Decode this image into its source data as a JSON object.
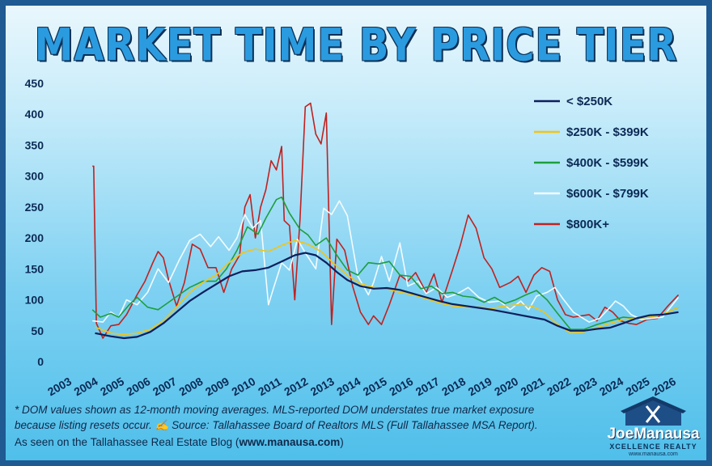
{
  "chart_data": {
    "type": "line",
    "title": "MARKET TIME BY PRICE TIER",
    "xlabel": "",
    "ylabel": "",
    "ylim": [
      0,
      450
    ],
    "xlim": [
      2003,
      2026.8
    ],
    "yticks": [
      0,
      50,
      100,
      150,
      200,
      250,
      300,
      350,
      400,
      450
    ],
    "xticks": [
      2003,
      2004,
      2005,
      2006,
      2007,
      2008,
      2009,
      2010,
      2011,
      2012,
      2013,
      2014,
      2015,
      2016,
      2017,
      2018,
      2019,
      2020,
      2021,
      2022,
      2023,
      2024,
      2025,
      2026
    ],
    "grid": false,
    "legend_position": "top-right",
    "series": [
      {
        "name": "< $250K",
        "color": "#0d1f5c",
        "points": [
          [
            2004.4,
            46
          ],
          [
            2005.0,
            41
          ],
          [
            2005.5,
            38
          ],
          [
            2006.0,
            40
          ],
          [
            2006.5,
            48
          ],
          [
            2007.0,
            62
          ],
          [
            2007.5,
            80
          ],
          [
            2008.0,
            98
          ],
          [
            2008.5,
            112
          ],
          [
            2009.0,
            125
          ],
          [
            2009.5,
            138
          ],
          [
            2010.0,
            146
          ],
          [
            2010.5,
            148
          ],
          [
            2011.0,
            152
          ],
          [
            2011.5,
            162
          ],
          [
            2012.0,
            172
          ],
          [
            2012.4,
            176
          ],
          [
            2012.8,
            172
          ],
          [
            2013.2,
            160
          ],
          [
            2013.6,
            145
          ],
          [
            2014.0,
            132
          ],
          [
            2014.5,
            122
          ],
          [
            2015.0,
            118
          ],
          [
            2015.5,
            119
          ],
          [
            2016.0,
            116
          ],
          [
            2016.5,
            110
          ],
          [
            2017.0,
            104
          ],
          [
            2017.5,
            98
          ],
          [
            2018.0,
            93
          ],
          [
            2018.5,
            90
          ],
          [
            2019.0,
            87
          ],
          [
            2019.5,
            84
          ],
          [
            2020.0,
            80
          ],
          [
            2020.5,
            76
          ],
          [
            2021.0,
            72
          ],
          [
            2021.5,
            68
          ],
          [
            2022.0,
            58
          ],
          [
            2022.5,
            50
          ],
          [
            2023.0,
            50
          ],
          [
            2023.5,
            53
          ],
          [
            2024.0,
            55
          ],
          [
            2024.5,
            62
          ],
          [
            2025.0,
            70
          ],
          [
            2025.5,
            75
          ],
          [
            2026.0,
            76
          ],
          [
            2026.6,
            80
          ]
        ]
      },
      {
        "name": "$250K - $399K",
        "color": "#f2c414",
        "points": [
          [
            2004.4,
            56
          ],
          [
            2005.0,
            46
          ],
          [
            2005.5,
            44
          ],
          [
            2006.0,
            46
          ],
          [
            2006.5,
            52
          ],
          [
            2007.0,
            66
          ],
          [
            2007.5,
            88
          ],
          [
            2008.0,
            112
          ],
          [
            2008.5,
            128
          ],
          [
            2009.0,
            140
          ],
          [
            2009.5,
            160
          ],
          [
            2010.0,
            176
          ],
          [
            2010.5,
            182
          ],
          [
            2011.0,
            178
          ],
          [
            2011.5,
            188
          ],
          [
            2012.0,
            196
          ],
          [
            2012.5,
            190
          ],
          [
            2013.0,
            178
          ],
          [
            2013.5,
            158
          ],
          [
            2014.0,
            140
          ],
          [
            2014.5,
            126
          ],
          [
            2015.0,
            120
          ],
          [
            2015.5,
            118
          ],
          [
            2016.0,
            112
          ],
          [
            2016.5,
            108
          ],
          [
            2017.0,
            102
          ],
          [
            2017.5,
            95
          ],
          [
            2018.0,
            90
          ],
          [
            2018.5,
            88
          ],
          [
            2019.0,
            88
          ],
          [
            2019.5,
            86
          ],
          [
            2020.0,
            90
          ],
          [
            2020.5,
            92
          ],
          [
            2021.0,
            90
          ],
          [
            2021.5,
            80
          ],
          [
            2022.0,
            60
          ],
          [
            2022.5,
            46
          ],
          [
            2023.0,
            48
          ],
          [
            2023.5,
            55
          ],
          [
            2024.0,
            62
          ],
          [
            2024.5,
            68
          ],
          [
            2025.0,
            70
          ],
          [
            2025.5,
            72
          ],
          [
            2026.0,
            76
          ],
          [
            2026.6,
            88
          ]
        ]
      },
      {
        "name": "$400K - $599K",
        "color": "#1e9e3c",
        "points": [
          [
            2004.3,
            84
          ],
          [
            2004.6,
            72
          ],
          [
            2005.0,
            78
          ],
          [
            2005.3,
            72
          ],
          [
            2005.7,
            92
          ],
          [
            2006.0,
            104
          ],
          [
            2006.4,
            88
          ],
          [
            2006.8,
            84
          ],
          [
            2007.2,
            96
          ],
          [
            2007.6,
            108
          ],
          [
            2008.0,
            120
          ],
          [
            2008.5,
            130
          ],
          [
            2009.0,
            130
          ],
          [
            2009.4,
            150
          ],
          [
            2009.8,
            180
          ],
          [
            2010.2,
            218
          ],
          [
            2010.6,
            206
          ],
          [
            2010.9,
            232
          ],
          [
            2011.3,
            262
          ],
          [
            2011.5,
            266
          ],
          [
            2011.8,
            240
          ],
          [
            2012.2,
            214
          ],
          [
            2012.5,
            205
          ],
          [
            2012.8,
            188
          ],
          [
            2013.2,
            200
          ],
          [
            2013.6,
            172
          ],
          [
            2014.0,
            148
          ],
          [
            2014.4,
            140
          ],
          [
            2014.8,
            160
          ],
          [
            2015.2,
            158
          ],
          [
            2015.6,
            162
          ],
          [
            2016.0,
            140
          ],
          [
            2016.4,
            138
          ],
          [
            2016.8,
            118
          ],
          [
            2017.2,
            122
          ],
          [
            2017.6,
            110
          ],
          [
            2018.0,
            112
          ],
          [
            2018.4,
            106
          ],
          [
            2018.8,
            104
          ],
          [
            2019.2,
            96
          ],
          [
            2019.6,
            104
          ],
          [
            2020.0,
            94
          ],
          [
            2020.4,
            100
          ],
          [
            2020.8,
            108
          ],
          [
            2021.2,
            115
          ],
          [
            2021.6,
            100
          ],
          [
            2022.0,
            78
          ],
          [
            2022.5,
            52
          ],
          [
            2023.0,
            52
          ],
          [
            2023.5,
            60
          ],
          [
            2024.0,
            66
          ],
          [
            2024.5,
            72
          ],
          [
            2025.0,
            70
          ],
          [
            2025.5,
            72
          ],
          [
            2026.0,
            76
          ],
          [
            2026.6,
            88
          ]
        ]
      },
      {
        "name": "$600K - $799K",
        "color": "#f4fbff",
        "points": [
          [
            2004.3,
            66
          ],
          [
            2004.7,
            64
          ],
          [
            2005.0,
            80
          ],
          [
            2005.3,
            72
          ],
          [
            2005.6,
            100
          ],
          [
            2006.0,
            92
          ],
          [
            2006.4,
            112
          ],
          [
            2006.8,
            150
          ],
          [
            2007.2,
            128
          ],
          [
            2007.6,
            164
          ],
          [
            2008.0,
            196
          ],
          [
            2008.4,
            206
          ],
          [
            2008.8,
            186
          ],
          [
            2009.1,
            202
          ],
          [
            2009.5,
            180
          ],
          [
            2009.8,
            200
          ],
          [
            2010.1,
            238
          ],
          [
            2010.4,
            216
          ],
          [
            2010.7,
            228
          ],
          [
            2011.0,
            92
          ],
          [
            2011.2,
            120
          ],
          [
            2011.5,
            160
          ],
          [
            2011.8,
            148
          ],
          [
            2012.1,
            198
          ],
          [
            2012.4,
            176
          ],
          [
            2012.8,
            150
          ],
          [
            2013.1,
            248
          ],
          [
            2013.4,
            238
          ],
          [
            2013.7,
            260
          ],
          [
            2014.0,
            236
          ],
          [
            2014.4,
            138
          ],
          [
            2014.8,
            108
          ],
          [
            2015.0,
            128
          ],
          [
            2015.3,
            170
          ],
          [
            2015.6,
            130
          ],
          [
            2016.0,
            192
          ],
          [
            2016.3,
            122
          ],
          [
            2016.7,
            130
          ],
          [
            2017.0,
            110
          ],
          [
            2017.4,
            120
          ],
          [
            2017.8,
            104
          ],
          [
            2018.2,
            110
          ],
          [
            2018.6,
            120
          ],
          [
            2019.0,
            104
          ],
          [
            2019.4,
            96
          ],
          [
            2019.8,
            98
          ],
          [
            2020.2,
            84
          ],
          [
            2020.6,
            98
          ],
          [
            2020.9,
            84
          ],
          [
            2021.2,
            106
          ],
          [
            2021.6,
            112
          ],
          [
            2021.9,
            120
          ],
          [
            2022.2,
            102
          ],
          [
            2022.6,
            80
          ],
          [
            2022.9,
            72
          ],
          [
            2023.2,
            64
          ],
          [
            2023.6,
            70
          ],
          [
            2024.0,
            88
          ],
          [
            2024.2,
            98
          ],
          [
            2024.5,
            90
          ],
          [
            2024.8,
            76
          ],
          [
            2025.2,
            68
          ],
          [
            2025.6,
            70
          ],
          [
            2026.0,
            72
          ],
          [
            2026.6,
            104
          ]
        ]
      },
      {
        "name": "$800K+",
        "color": "#c0211f",
        "points": [
          [
            2004.3,
            316
          ],
          [
            2004.35,
            316
          ],
          [
            2004.45,
            62
          ],
          [
            2004.7,
            38
          ],
          [
            2005.0,
            58
          ],
          [
            2005.3,
            60
          ],
          [
            2005.6,
            76
          ],
          [
            2006.0,
            108
          ],
          [
            2006.3,
            130
          ],
          [
            2006.6,
            160
          ],
          [
            2006.8,
            178
          ],
          [
            2007.0,
            168
          ],
          [
            2007.2,
            132
          ],
          [
            2007.5,
            90
          ],
          [
            2007.8,
            128
          ],
          [
            2008.1,
            190
          ],
          [
            2008.4,
            182
          ],
          [
            2008.7,
            152
          ],
          [
            2009.0,
            152
          ],
          [
            2009.3,
            112
          ],
          [
            2009.6,
            150
          ],
          [
            2009.9,
            172
          ],
          [
            2010.1,
            250
          ],
          [
            2010.3,
            270
          ],
          [
            2010.5,
            200
          ],
          [
            2010.7,
            250
          ],
          [
            2010.9,
            278
          ],
          [
            2011.1,
            325
          ],
          [
            2011.3,
            310
          ],
          [
            2011.5,
            348
          ],
          [
            2011.6,
            228
          ],
          [
            2011.8,
            220
          ],
          [
            2012.0,
            100
          ],
          [
            2012.2,
            230
          ],
          [
            2012.4,
            412
          ],
          [
            2012.6,
            418
          ],
          [
            2012.8,
            368
          ],
          [
            2013.0,
            352
          ],
          [
            2013.2,
            402
          ],
          [
            2013.4,
            60
          ],
          [
            2013.6,
            198
          ],
          [
            2013.9,
            180
          ],
          [
            2014.2,
            122
          ],
          [
            2014.5,
            80
          ],
          [
            2014.8,
            60
          ],
          [
            2015.0,
            74
          ],
          [
            2015.3,
            60
          ],
          [
            2015.6,
            92
          ],
          [
            2016.0,
            140
          ],
          [
            2016.3,
            130
          ],
          [
            2016.6,
            144
          ],
          [
            2017.0,
            112
          ],
          [
            2017.3,
            142
          ],
          [
            2017.6,
            96
          ],
          [
            2018.0,
            148
          ],
          [
            2018.3,
            188
          ],
          [
            2018.6,
            237
          ],
          [
            2018.9,
            216
          ],
          [
            2019.2,
            168
          ],
          [
            2019.5,
            150
          ],
          [
            2019.8,
            120
          ],
          [
            2020.2,
            128
          ],
          [
            2020.5,
            138
          ],
          [
            2020.8,
            112
          ],
          [
            2021.1,
            140
          ],
          [
            2021.4,
            152
          ],
          [
            2021.7,
            146
          ],
          [
            2022.0,
            100
          ],
          [
            2022.3,
            76
          ],
          [
            2022.6,
            72
          ],
          [
            2022.9,
            74
          ],
          [
            2023.2,
            76
          ],
          [
            2023.5,
            66
          ],
          [
            2023.8,
            88
          ],
          [
            2024.1,
            80
          ],
          [
            2024.4,
            66
          ],
          [
            2024.7,
            62
          ],
          [
            2025.0,
            60
          ],
          [
            2025.4,
            68
          ],
          [
            2025.8,
            70
          ],
          [
            2026.2,
            90
          ],
          [
            2026.6,
            108
          ]
        ]
      }
    ]
  },
  "footnote": {
    "line1": "* DOM values shown as 12-month moving averages. MLS-reported DOM understates true market exposure",
    "line2": "because listing resets occur. ",
    "hand_glyph": "✍",
    "line2_rest": " Source: Tallahassee Board of Realtors MLS (Full Tallahassee MSA Report)."
  },
  "credit": {
    "prefix": "As seen on the Tallahassee Real Estate Blog (",
    "link": "www.manausa.com",
    "suffix": ")"
  },
  "logo": {
    "name": "JoeManausa",
    "sub": "XCELLENCE REALTY",
    "url": "www.manausa.com",
    "brand_color": "#1e4e86"
  }
}
